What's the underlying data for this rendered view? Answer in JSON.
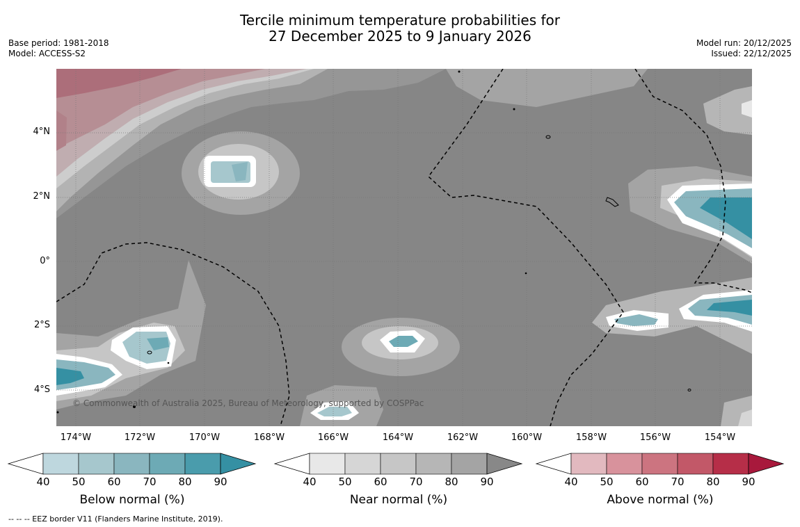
{
  "title": {
    "line1": "Tercile minimum temperature probabilities for",
    "line2": "27 December 2025 to 9 January 2026"
  },
  "meta_left": {
    "base_period": "Base period: 1981-2018",
    "model": "Model: ACCESS-S2"
  },
  "meta_right": {
    "model_run": "Model run: 20/12/2025",
    "issued": "Issued: 22/12/2025"
  },
  "map": {
    "lat_labels": [
      "4°N",
      "2°N",
      "0°",
      "2°S",
      "4°S"
    ],
    "lon_labels": [
      "174°W",
      "172°W",
      "170°W",
      "168°W",
      "166°W",
      "164°W",
      "162°W",
      "160°W",
      "158°W",
      "156°W",
      "154°W"
    ],
    "copyright": "© Commonwealth of Australia 2025, Bureau of Meteorology, supported by COSPPac",
    "colors": {
      "background": "#868686",
      "below": "#3a95a8",
      "above": "#b42942",
      "border": "#ffffff"
    }
  },
  "colorbars": [
    {
      "title": "Below normal (%)",
      "labels": [
        "40",
        "50",
        "60",
        "70",
        "80",
        "90"
      ],
      "colors": [
        "#bed7de",
        "#a6c7cd",
        "#8ab6bf",
        "#6daab5",
        "#4a9cac",
        "#3590a3"
      ]
    },
    {
      "title": "Near normal (%)",
      "labels": [
        "40",
        "50",
        "60",
        "70",
        "80",
        "90"
      ],
      "colors": [
        "#e8e8e8",
        "#d6d6d6",
        "#c6c6c6",
        "#b6b6b6",
        "#a4a4a4",
        "#888888"
      ]
    },
    {
      "title": "Above normal (%)",
      "labels": [
        "40",
        "50",
        "60",
        "70",
        "80",
        "90"
      ],
      "colors": [
        "#e2b9bf",
        "#d8929c",
        "#cc7480",
        "#c25868",
        "#b62e48",
        "#a8193c"
      ]
    }
  ],
  "footer": "--  --  -- EEZ border V11 (Flanders Marine Institute, 2019)."
}
